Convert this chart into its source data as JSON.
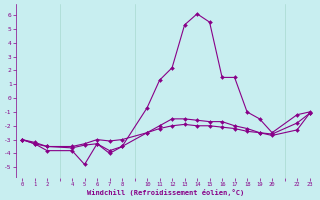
{
  "xlabel": "Windchill (Refroidissement éolien,°C)",
  "bg_color": "#c8eef0",
  "grid_color": "#a0d4c8",
  "line_color": "#880088",
  "hours": [
    0,
    1,
    2,
    4,
    5,
    6,
    7,
    8,
    10,
    11,
    12,
    13,
    14,
    15,
    16,
    17,
    18,
    19,
    20,
    22,
    23
  ],
  "line1_y": [
    -3.0,
    -3.3,
    -3.8,
    -3.8,
    -4.8,
    -3.3,
    -3.8,
    -3.5,
    -0.7,
    1.3,
    2.2,
    5.3,
    6.1,
    5.5,
    1.5,
    1.5,
    -1.0,
    -1.5,
    -2.5,
    -1.2,
    -1.0
  ],
  "line2_y": [
    -3.0,
    -3.3,
    -3.5,
    -3.6,
    -3.4,
    -3.3,
    -4.0,
    -3.5,
    -2.5,
    -2.0,
    -1.5,
    -1.5,
    -1.6,
    -1.7,
    -1.7,
    -2.0,
    -2.2,
    -2.5,
    -2.7,
    -2.3,
    -1.1
  ],
  "line3_y": [
    -3.0,
    -3.2,
    -3.5,
    -3.5,
    -3.3,
    -3.0,
    -3.1,
    -3.0,
    -2.5,
    -2.2,
    -2.0,
    -1.9,
    -2.0,
    -2.0,
    -2.1,
    -2.2,
    -2.4,
    -2.5,
    -2.6,
    -1.8,
    -1.1
  ],
  "ylim": [
    -5.8,
    6.8
  ],
  "xlim": [
    -0.5,
    23.5
  ],
  "yticks": [
    -5,
    -4,
    -3,
    -2,
    -1,
    0,
    1,
    2,
    3,
    4,
    5,
    6
  ],
  "xticks": [
    0,
    1,
    2,
    4,
    5,
    6,
    7,
    8,
    10,
    11,
    12,
    13,
    14,
    15,
    16,
    17,
    18,
    19,
    20,
    22,
    23
  ]
}
